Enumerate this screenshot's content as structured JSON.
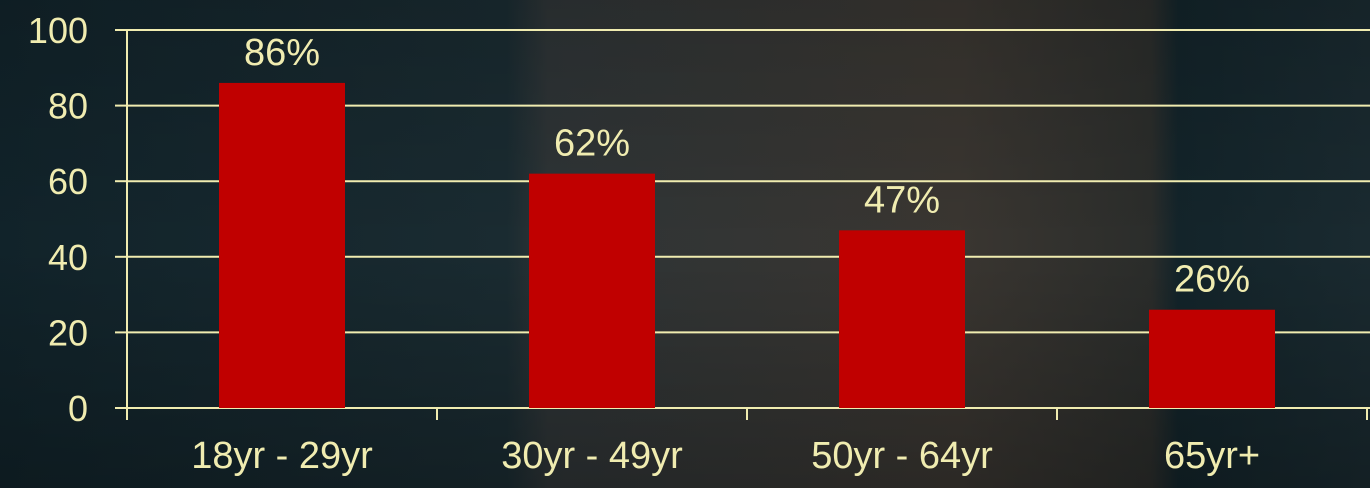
{
  "colors": {
    "bar": "#c00000",
    "text": "#f0ecb0",
    "gridline": "#f0ecb0",
    "bg_dark": "#13252b",
    "bg_mid": "#2a3437",
    "bg_warm": "#3a3631"
  },
  "chart_data": {
    "type": "bar",
    "title": "",
    "xlabel": "",
    "ylabel": "",
    "categories": [
      "18yr - 29yr",
      "30yr - 49yr",
      "50yr - 64yr",
      "65yr+"
    ],
    "values": [
      86,
      62,
      47,
      26
    ],
    "data_labels": [
      "86%",
      "62%",
      "47%",
      "26%"
    ],
    "ylim": [
      0,
      100
    ],
    "yticks": [
      0,
      20,
      40,
      60,
      80,
      100
    ],
    "ytick_labels": [
      "0",
      "20",
      "40",
      "60",
      "80",
      "100"
    ],
    "grid": true,
    "legend": "none"
  }
}
